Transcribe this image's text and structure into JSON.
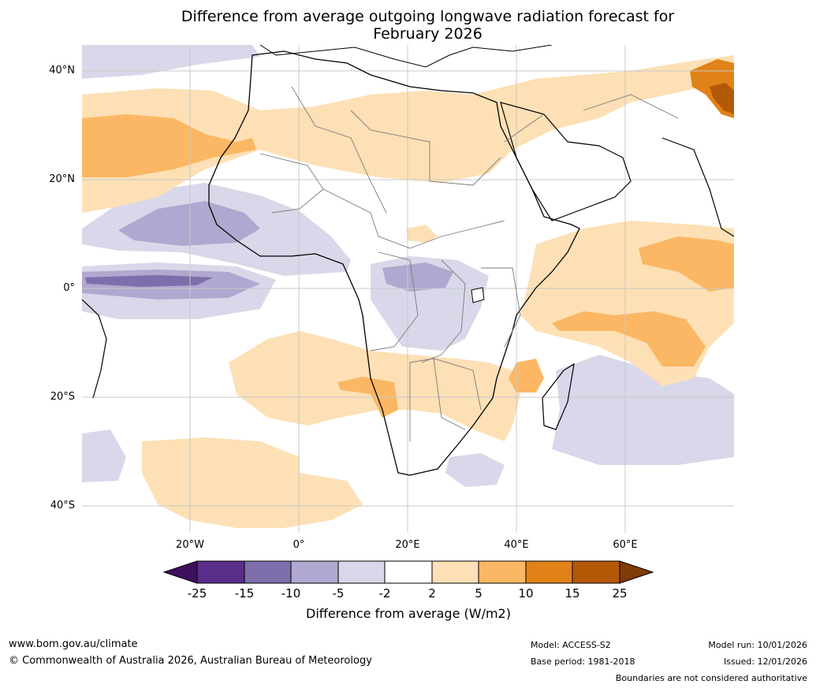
{
  "title": {
    "line1": "Difference from average outgoing longwave radiation forecast for",
    "line2": "February 2026"
  },
  "map": {
    "region": "Africa",
    "lat_labels": [
      "40°N",
      "20°N",
      "0°",
      "20°S",
      "40°S"
    ],
    "lon_labels": [
      "20°W",
      "0°",
      "20°E",
      "40°E",
      "60°E"
    ]
  },
  "colorbar": {
    "title": "Difference from average (W/m2)",
    "ticks": [
      "-25",
      "-15",
      "-10",
      "-5",
      "-2",
      "2",
      "5",
      "10",
      "15",
      "25"
    ],
    "colors": [
      "#3d0f5e",
      "#5a2d8a",
      "#7e6fac",
      "#b0a8d0",
      "#d8d8ea",
      "#ffffff",
      "#fde0b5",
      "#fbb763",
      "#e08218",
      "#b35806",
      "#7f3b08"
    ]
  },
  "footer": {
    "website": "www.bom.gov.au/climate",
    "copyright": "© Commonwealth of Australia 2026, Australian Bureau of Meteorology",
    "model": "Model: ACCESS-S2",
    "base_period": "Base period: 1981-2018",
    "model_run": "Model run: 10/01/2026",
    "issued": "Issued: 12/01/2026",
    "disclaimer": "Boundaries are not considered authoritative"
  }
}
